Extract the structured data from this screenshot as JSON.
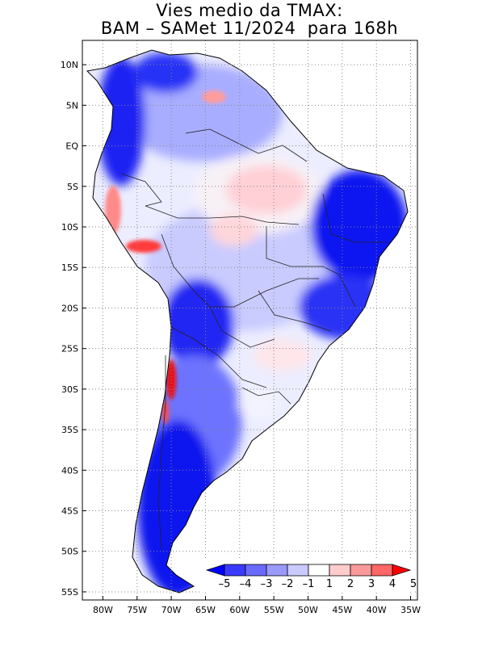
{
  "title": {
    "line1": "Vies medio da TMAX:",
    "line2": "BAM – SAMet 11/2024  para 168h"
  },
  "axes": {
    "lon_ticks": [
      "80W",
      "75W",
      "70W",
      "65W",
      "60W",
      "55W",
      "50W",
      "45W",
      "40W",
      "35W"
    ],
    "lat_ticks": [
      "10N",
      "5N",
      "EQ",
      "5S",
      "10S",
      "15S",
      "20S",
      "25S",
      "30S",
      "35S",
      "40S",
      "45S",
      "50S",
      "55S"
    ],
    "lon_range": [
      -83,
      -34
    ],
    "lat_range": [
      13,
      -56
    ]
  },
  "colorbar": {
    "labels": [
      "–5",
      "–4",
      "–3",
      "–2",
      "–1",
      "1",
      "2",
      "3",
      "4",
      "5"
    ],
    "colors": [
      "#0000ff",
      "#3a3aff",
      "#6a6aff",
      "#9999ff",
      "#cacaff",
      "#ffffff",
      "#ffcccc",
      "#ff9999",
      "#ff6666",
      "#ff0000"
    ]
  },
  "colors": {
    "grid": "#888888",
    "land_neutral": "#ffffff",
    "strong_cold": "#0f18f0",
    "strong_warm": "#ee1010"
  }
}
